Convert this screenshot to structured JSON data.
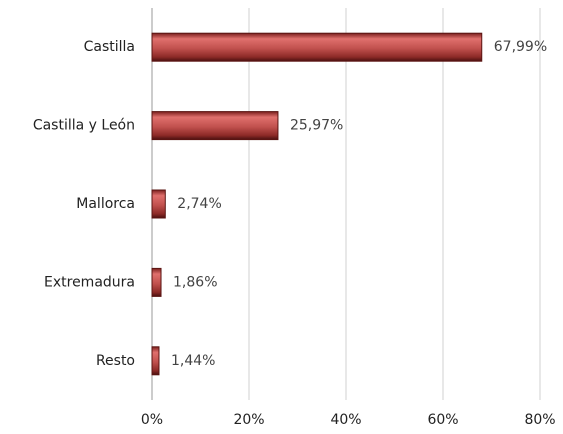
{
  "chart_data": {
    "type": "bar",
    "orientation": "horizontal",
    "categories": [
      "Castilla",
      "Castilla y León",
      "Mallorca",
      "Extremadura",
      "Resto"
    ],
    "values": [
      67.99,
      25.97,
      2.74,
      1.86,
      1.44
    ],
    "value_labels": [
      "67,99%",
      "25,97%",
      "2,74%",
      "1,86%",
      "1,44%"
    ],
    "color": "#c0504d",
    "xlim": [
      0,
      80
    ],
    "xticks": [
      {
        "value": 0,
        "label": "0%"
      },
      {
        "value": 20,
        "label": "20%"
      },
      {
        "value": 40,
        "label": "40%"
      },
      {
        "value": 60,
        "label": "60%"
      },
      {
        "value": 80,
        "label": "80%"
      }
    ],
    "grid": true
  }
}
